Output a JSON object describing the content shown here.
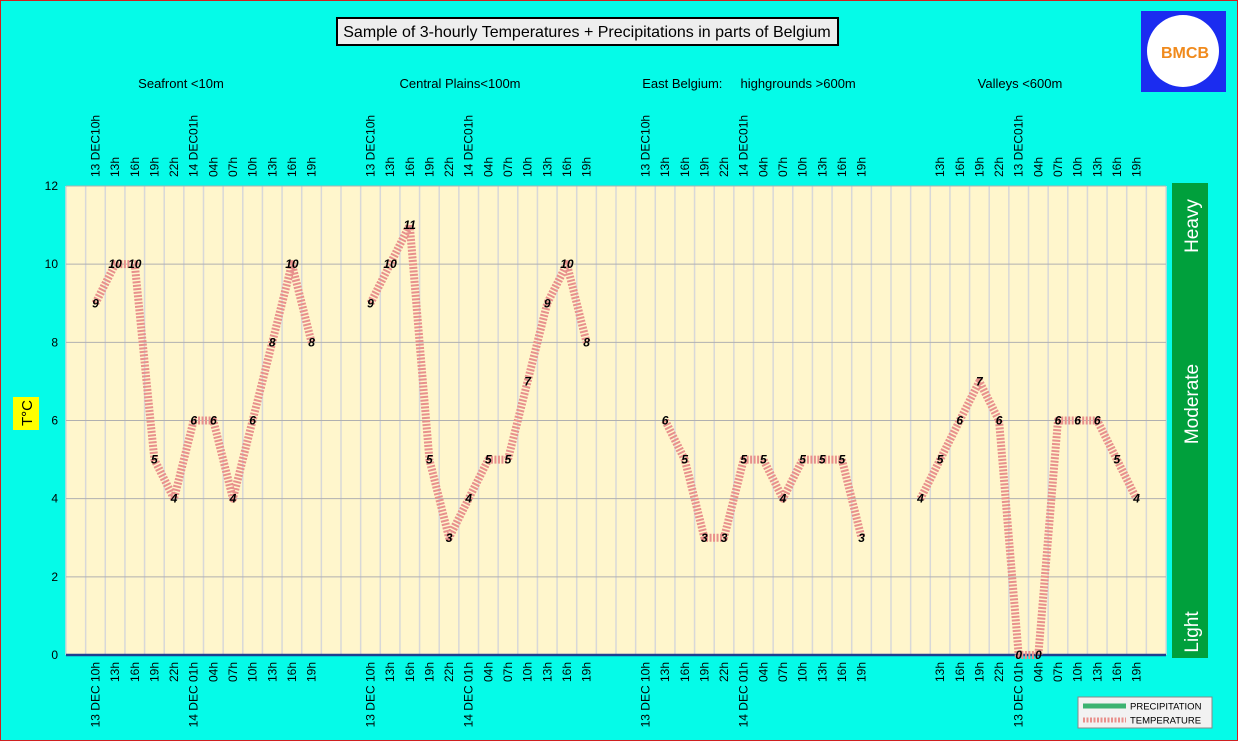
{
  "chart_data": {
    "type": "line",
    "title": "Sample of 3-hourly Temperatures + Precipitations in parts of Belgium",
    "y_label": "T°C",
    "sections": [
      "Seafront <10m",
      "Central Plains<100m",
      "East Belgium:     highgrounds >600m",
      "Valleys <600m"
    ],
    "intensity_labels": [
      "Heavy",
      "Moderate",
      "Light"
    ],
    "logo": "BMCB",
    "categories": [
      null,
      "13 DEC 10h",
      "13h",
      "16h",
      "19h",
      "22h",
      "14 DEC 01h",
      "04h",
      "07h",
      "10h",
      "13h",
      "16h",
      "19h",
      null,
      null,
      "13 DEC 10h",
      "13h",
      "16h",
      "19h",
      "22h",
      "14 DEC 01h",
      "04h",
      "07h",
      "10h",
      "13h",
      "16h",
      "19h",
      null,
      null,
      "13 DEC 10h",
      "13h",
      "16h",
      "19h",
      "22h",
      "14 DEC 01h",
      "04h",
      "07h",
      "10h",
      "13h",
      "16h",
      "19h",
      null,
      null,
      null,
      "13h",
      "16h",
      "19h",
      "22h",
      "13 DEC 01h",
      "04h",
      "07h",
      "10h",
      "13h",
      "16h",
      "19h",
      null
    ],
    "top_categories": [
      null,
      "13 DEC10h",
      "13h",
      "16h",
      "19h",
      "22h",
      "14 DEC01h",
      "04h",
      "07h",
      "10h",
      "13h",
      "16h",
      "19h",
      null,
      null,
      "13 DEC10h",
      "13h",
      "16h",
      "19h",
      "22h",
      "14 DEC01h",
      "04h",
      "07h",
      "10h",
      "13h",
      "16h",
      "19h",
      null,
      null,
      "13 DEC10h",
      "13h",
      "16h",
      "19h",
      "22h",
      "14 DEC01h",
      "04h",
      "07h",
      "10h",
      "13h",
      "16h",
      "19h",
      null,
      null,
      null,
      "13h",
      "16h",
      "19h",
      "22h",
      "13 DEC01h",
      "04h",
      "07h",
      "10h",
      "13h",
      "16h",
      "19h",
      null
    ],
    "series": [
      {
        "name": "PRECIPITATION",
        "color": "#3cb371",
        "values": [
          null,
          null,
          null,
          null,
          null,
          null,
          null,
          null,
          null,
          null,
          null,
          null,
          null,
          null,
          null,
          null,
          null,
          null,
          null,
          null,
          null,
          null,
          null,
          null,
          null,
          null,
          null,
          null,
          null,
          null,
          null,
          null,
          null,
          null,
          null,
          null,
          null,
          null,
          null,
          null,
          null,
          null,
          null,
          null,
          null,
          null,
          null,
          null,
          null,
          null,
          null,
          null,
          null,
          null,
          null,
          null
        ]
      },
      {
        "name": "TEMPERATURE",
        "color": "#e8908c",
        "values": [
          null,
          9,
          10,
          10,
          5,
          4,
          6,
          6,
          4,
          6,
          8,
          10,
          8,
          null,
          null,
          9,
          10,
          11,
          5,
          3,
          4,
          5,
          5,
          7,
          9,
          10,
          8,
          null,
          null,
          null,
          6,
          5,
          3,
          3,
          5,
          5,
          4,
          5,
          5,
          5,
          3,
          null,
          null,
          4,
          5,
          6,
          7,
          6,
          0,
          0,
          6,
          6,
          6,
          5,
          4,
          null
        ]
      }
    ],
    "ylim": [
      0,
      12
    ],
    "yticks": [
      0,
      2,
      4,
      6,
      8,
      10,
      12
    ],
    "grid": true
  }
}
